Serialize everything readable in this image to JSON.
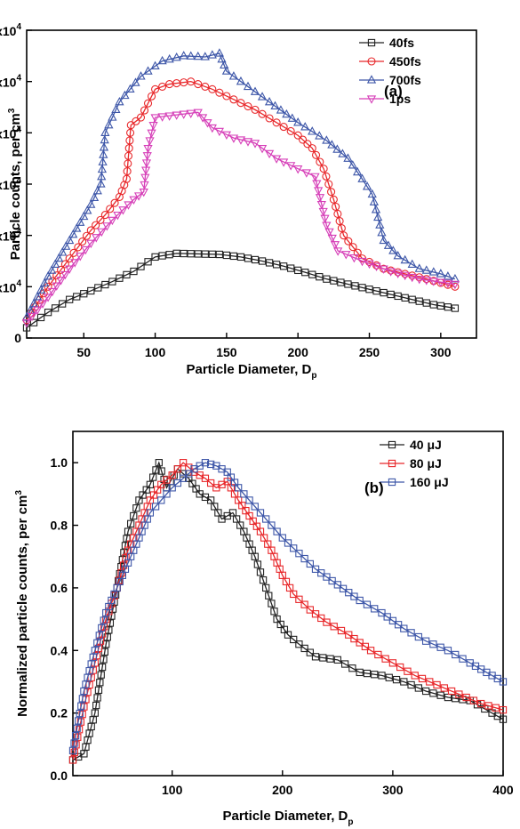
{
  "chart_data": [
    {
      "type": "line",
      "panel_label": "(a)",
      "xlabel": "Particle Diameter, D",
      "xlabel_sub": "p",
      "ylabel": "Particle counts, per cm",
      "ylabel_sup": "3",
      "xlim": [
        10,
        325
      ],
      "ylim": [
        0,
        60000
      ],
      "xticks": [
        50,
        100,
        150,
        200,
        250,
        300
      ],
      "yticks": [
        {
          "value": 0,
          "mantissa": "0",
          "exp": ""
        },
        {
          "value": 10000,
          "mantissa": "1x10",
          "exp": "4"
        },
        {
          "value": 20000,
          "mantissa": "2x10",
          "exp": "4"
        },
        {
          "value": 30000,
          "mantissa": "3x10",
          "exp": "4"
        },
        {
          "value": 40000,
          "mantissa": "4x10",
          "exp": "4"
        },
        {
          "value": 50000,
          "mantissa": "5x10",
          "exp": "4"
        },
        {
          "value": 60000,
          "mantissa": "6x10",
          "exp": "4"
        }
      ],
      "legend_position": "top-right",
      "series": [
        {
          "name": "40fs",
          "color": "#222222",
          "marker": "square",
          "points": [
            [
              10,
              2000
            ],
            [
              25,
              5000
            ],
            [
              40,
              7500
            ],
            [
              55,
              9200
            ],
            [
              70,
              11000
            ],
            [
              85,
              13000
            ],
            [
              100,
              15800
            ],
            [
              115,
              16500
            ],
            [
              130,
              16400
            ],
            [
              145,
              16300
            ],
            [
              160,
              15800
            ],
            [
              175,
              15000
            ],
            [
              190,
              14000
            ],
            [
              205,
              12800
            ],
            [
              220,
              11500
            ],
            [
              235,
              10500
            ],
            [
              250,
              9500
            ],
            [
              265,
              8500
            ],
            [
              280,
              7500
            ],
            [
              295,
              6500
            ],
            [
              310,
              5800
            ]
          ]
        },
        {
          "name": "450fs",
          "color": "#e8272a",
          "marker": "circle",
          "points": [
            [
              10,
              3500
            ],
            [
              25,
              10000
            ],
            [
              40,
              15500
            ],
            [
              55,
              21000
            ],
            [
              65,
              24000
            ],
            [
              75,
              27500
            ],
            [
              80,
              31000
            ],
            [
              83,
              41500
            ],
            [
              90,
              43000
            ],
            [
              100,
              48500
            ],
            [
              110,
              49500
            ],
            [
              125,
              50000
            ],
            [
              140,
              48500
            ],
            [
              155,
              46500
            ],
            [
              170,
              44500
            ],
            [
              185,
              42000
            ],
            [
              200,
              39500
            ],
            [
              210,
              37000
            ],
            [
              218,
              33000
            ],
            [
              225,
              27000
            ],
            [
              232,
              20000
            ],
            [
              245,
              15500
            ],
            [
              260,
              13500
            ],
            [
              275,
              12500
            ],
            [
              290,
              11500
            ],
            [
              310,
              10000
            ]
          ]
        },
        {
          "name": "700fs",
          "color": "#3d56a8",
          "marker": "triangle-up",
          "points": [
            [
              10,
              4000
            ],
            [
              25,
              12000
            ],
            [
              40,
              19000
            ],
            [
              55,
              26000
            ],
            [
              62,
              30000
            ],
            [
              65,
              40000
            ],
            [
              75,
              46000
            ],
            [
              90,
              51000
            ],
            [
              105,
              54000
            ],
            [
              120,
              55000
            ],
            [
              135,
              54800
            ],
            [
              145,
              55500
            ],
            [
              150,
              52000
            ],
            [
              165,
              49000
            ],
            [
              180,
              46000
            ],
            [
              200,
              42000
            ],
            [
              220,
              38500
            ],
            [
              235,
              35000
            ],
            [
              245,
              31000
            ],
            [
              252,
              28000
            ],
            [
              260,
              19000
            ],
            [
              270,
              16000
            ],
            [
              285,
              13500
            ],
            [
              300,
              12500
            ],
            [
              310,
              11500
            ]
          ]
        },
        {
          "name": "1ps",
          "color": "#d63fb8",
          "marker": "triangle-down",
          "points": [
            [
              10,
              3000
            ],
            [
              25,
              8000
            ],
            [
              40,
              13500
            ],
            [
              55,
              18500
            ],
            [
              70,
              23000
            ],
            [
              85,
              27000
            ],
            [
              92,
              28500
            ],
            [
              95,
              37000
            ],
            [
              100,
              43000
            ],
            [
              115,
              43500
            ],
            [
              130,
              44000
            ],
            [
              140,
              41000
            ],
            [
              155,
              39000
            ],
            [
              170,
              38000
            ],
            [
              185,
              35000
            ],
            [
              200,
              33000
            ],
            [
              212,
              31500
            ],
            [
              220,
              22000
            ],
            [
              228,
              17000
            ],
            [
              245,
              15000
            ],
            [
              265,
              13000
            ],
            [
              285,
              11500
            ],
            [
              310,
              10500
            ]
          ]
        }
      ]
    },
    {
      "type": "line",
      "panel_label": "(b)",
      "xlabel": "Particle Diameter, D",
      "xlabel_sub": "p",
      "ylabel": "Normalized particle counts, per cm",
      "ylabel_sup": "3",
      "xlim": [
        10,
        400
      ],
      "ylim": [
        0,
        1.1
      ],
      "xticks": [
        100,
        200,
        300,
        400
      ],
      "yticks": [
        {
          "value": 0,
          "mantissa": "0.0",
          "exp": ""
        },
        {
          "value": 0.2,
          "mantissa": "0.2",
          "exp": ""
        },
        {
          "value": 0.4,
          "mantissa": "0.4",
          "exp": ""
        },
        {
          "value": 0.6,
          "mantissa": "0.6",
          "exp": ""
        },
        {
          "value": 0.8,
          "mantissa": "0.8",
          "exp": ""
        },
        {
          "value": 1.0,
          "mantissa": "1.0",
          "exp": ""
        }
      ],
      "legend_position": "top-right",
      "series": [
        {
          "name": "40 μJ",
          "color": "#222222",
          "marker": "square",
          "points": [
            [
              10,
              0.05
            ],
            [
              20,
              0.07
            ],
            [
              30,
              0.2
            ],
            [
              40,
              0.42
            ],
            [
              50,
              0.6
            ],
            [
              60,
              0.78
            ],
            [
              70,
              0.88
            ],
            [
              80,
              0.93
            ],
            [
              88,
              1.0
            ],
            [
              95,
              0.92
            ],
            [
              105,
              0.98
            ],
            [
              115,
              0.95
            ],
            [
              125,
              0.9
            ],
            [
              135,
              0.88
            ],
            [
              145,
              0.82
            ],
            [
              155,
              0.84
            ],
            [
              165,
              0.78
            ],
            [
              175,
              0.7
            ],
            [
              185,
              0.6
            ],
            [
              195,
              0.5
            ],
            [
              205,
              0.45
            ],
            [
              215,
              0.42
            ],
            [
              230,
              0.38
            ],
            [
              250,
              0.37
            ],
            [
              270,
              0.33
            ],
            [
              290,
              0.32
            ],
            [
              310,
              0.3
            ],
            [
              330,
              0.27
            ],
            [
              350,
              0.25
            ],
            [
              370,
              0.24
            ],
            [
              390,
              0.2
            ],
            [
              400,
              0.18
            ]
          ]
        },
        {
          "name": "80 μJ",
          "color": "#e8272a",
          "marker": "square",
          "points": [
            [
              10,
              0.05
            ],
            [
              20,
              0.22
            ],
            [
              30,
              0.36
            ],
            [
              40,
              0.5
            ],
            [
              50,
              0.6
            ],
            [
              60,
              0.72
            ],
            [
              70,
              0.8
            ],
            [
              80,
              0.88
            ],
            [
              90,
              0.93
            ],
            [
              100,
              0.96
            ],
            [
              110,
              1.0
            ],
            [
              120,
              0.97
            ],
            [
              130,
              0.95
            ],
            [
              140,
              0.92
            ],
            [
              150,
              0.94
            ],
            [
              160,
              0.88
            ],
            [
              170,
              0.83
            ],
            [
              180,
              0.78
            ],
            [
              190,
              0.72
            ],
            [
              200,
              0.64
            ],
            [
              210,
              0.58
            ],
            [
              225,
              0.53
            ],
            [
              240,
              0.49
            ],
            [
              260,
              0.45
            ],
            [
              280,
              0.4
            ],
            [
              300,
              0.36
            ],
            [
              320,
              0.32
            ],
            [
              340,
              0.29
            ],
            [
              360,
              0.26
            ],
            [
              380,
              0.23
            ],
            [
              400,
              0.21
            ]
          ]
        },
        {
          "name": "160 μJ",
          "color": "#3d56a8",
          "marker": "square",
          "points": [
            [
              10,
              0.08
            ],
            [
              20,
              0.27
            ],
            [
              30,
              0.4
            ],
            [
              40,
              0.52
            ],
            [
              50,
              0.6
            ],
            [
              60,
              0.68
            ],
            [
              70,
              0.76
            ],
            [
              80,
              0.84
            ],
            [
              90,
              0.88
            ],
            [
              100,
              0.92
            ],
            [
              110,
              0.95
            ],
            [
              120,
              0.98
            ],
            [
              130,
              1.0
            ],
            [
              140,
              0.99
            ],
            [
              150,
              0.97
            ],
            [
              160,
              0.92
            ],
            [
              170,
              0.88
            ],
            [
              180,
              0.84
            ],
            [
              190,
              0.8
            ],
            [
              200,
              0.76
            ],
            [
              215,
              0.71
            ],
            [
              230,
              0.66
            ],
            [
              250,
              0.61
            ],
            [
              270,
              0.56
            ],
            [
              290,
              0.52
            ],
            [
              310,
              0.47
            ],
            [
              330,
              0.43
            ],
            [
              350,
              0.4
            ],
            [
              370,
              0.36
            ],
            [
              385,
              0.33
            ],
            [
              400,
              0.3
            ]
          ]
        }
      ]
    }
  ]
}
